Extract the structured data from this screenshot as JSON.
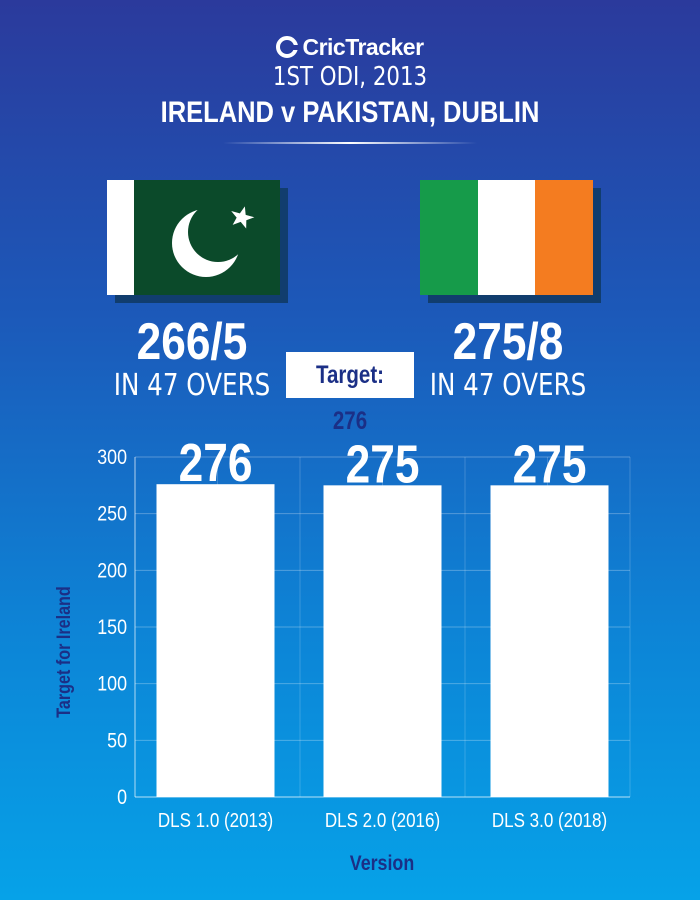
{
  "header": {
    "brand": "CricTracker",
    "match_no": "1ST ODI, 2013",
    "match_title": "IRELAND v PAKISTAN, DUBLIN"
  },
  "teams": {
    "pakistan": {
      "score": "266/5",
      "overs": "IN 47 OVERS",
      "flag_colors": [
        "#ffffff",
        "#0b4a2a"
      ]
    },
    "ireland": {
      "score": "275/8",
      "overs": "IN 47 OVERS",
      "flag_colors": [
        "#169b4a",
        "#ffffff",
        "#f47c20"
      ]
    }
  },
  "target_label": "Target: 276",
  "chart_data": {
    "type": "bar",
    "categories": [
      "DLS 1.0 (2013)",
      "DLS 2.0 (2016)",
      "DLS 3.0 (2018)"
    ],
    "values": [
      276,
      275,
      275
    ],
    "value_labels": [
      "276",
      "275",
      "275"
    ],
    "xlabel": "Version",
    "ylabel": "Target for Ireland",
    "ylim": [
      0,
      300
    ],
    "yticks": [
      0,
      50,
      100,
      150,
      200,
      250,
      300
    ],
    "grid": true,
    "bar_color": "#ffffff",
    "axis_label_color": "#1b2f86"
  }
}
